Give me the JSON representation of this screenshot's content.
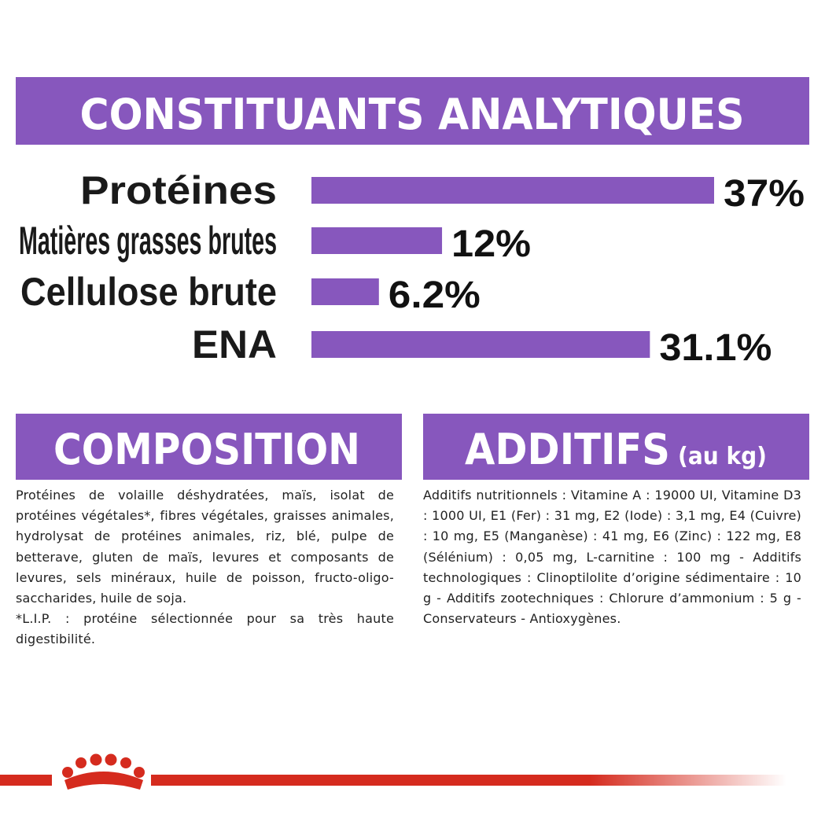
{
  "chart_data": {
    "type": "bar",
    "orientation": "horizontal",
    "title": "CONSTITUANTS ANALYTIQUES",
    "categories": [
      "Protéines",
      "Matières grasses brutes",
      "Cellulose brute",
      "ENA"
    ],
    "values": [
      37,
      12,
      6.2,
      31.1
    ],
    "value_labels": [
      "37%",
      "12%",
      "6.2%",
      "31.1%"
    ],
    "color": "#8757bd"
  },
  "composition": {
    "title": "COMPOSITION",
    "paragraphs": [
      "Protéines de volaille déshydratées, maïs, isolat de protéines végétales*, fibres végétales, graisses animales, hydrolysat de protéines animales, riz, blé, pulpe de betterave, gluten de maïs, levures et composants de levures, sels minéraux, huile de poisson, fructo-oligo-saccharides, huile de soja.",
      "*L.I.P. : protéine sélectionnée pour sa très haute digestibilité."
    ]
  },
  "additifs": {
    "title": "ADDITIFS",
    "subtitle": "(au kg)",
    "text": "Additifs nutritionnels : Vitamine A : 19000 UI, Vitamine D3 : 1000 UI, E1 (Fer) : 31 mg, E2 (Iode) : 3,1 mg, E4 (Cuivre) : 10 mg, E5 (Manganèse) : 41 mg, E6 (Zinc) : 122 mg, E8 (Sélénium) : 0,05 mg, L-carnitine : 100 mg - Additifs technologiques : Clinoptilolite d’origine sédimentaire : 10 g - Additifs zootechniques : Chlorure d’ammonium : 5 g - Conservateurs - Antioxygènes."
  }
}
